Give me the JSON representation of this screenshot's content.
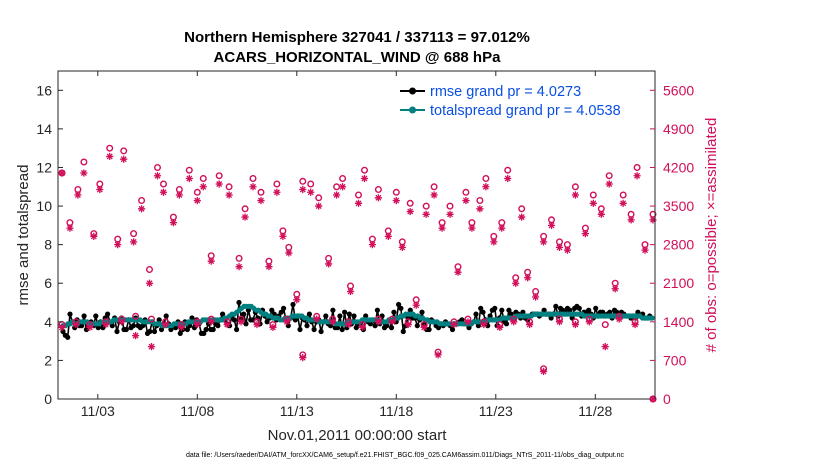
{
  "chart_data": {
    "type": "line",
    "title_line1": "Northern Hemisphere 327041 / 337113 = 97.012%",
    "title_line2": "ACARS_HORIZONTAL_WIND @ 688 hPa",
    "xlabel": "Nov.01,2011 00:00:00 start",
    "ylabel_left": "rmse and totalspread",
    "ylabel_right": "# of obs: o=possible; ×=assimilated",
    "xlim": [
      1.0,
      31.0
    ],
    "ylim_left": [
      0,
      17
    ],
    "ylim_right": [
      0,
      5950
    ],
    "x_ticks": [
      3,
      8,
      13,
      18,
      23,
      28
    ],
    "x_tick_labels": [
      "11/03",
      "11/08",
      "11/13",
      "11/18",
      "11/23",
      "11/28"
    ],
    "y_ticks_left": [
      0,
      2,
      4,
      6,
      8,
      10,
      12,
      14,
      16
    ],
    "y_ticks_right": [
      0,
      700,
      1400,
      2100,
      2800,
      3500,
      4200,
      4900,
      5600
    ],
    "colors": {
      "rmse": "#000000",
      "totalspread": "#008080",
      "obs": "#d10f5a",
      "legend_text": "#0a4fe0"
    },
    "series": [
      {
        "name": "rmse grand pr = 4.0273",
        "axis": "left",
        "values": [
          3.5,
          3.3,
          3.2,
          4.4,
          4.0,
          3.7,
          4.1,
          3.8,
          3.8,
          4.3,
          3.6,
          3.9,
          4.0,
          3.8,
          4.3,
          3.7,
          4.0,
          3.7,
          4.2,
          4.4,
          4.0,
          3.8,
          4.2,
          3.5,
          4.0,
          4.2,
          3.6,
          3.6,
          4.1,
          3.7,
          3.8,
          4.2,
          3.8,
          3.7,
          3.8,
          4.1,
          3.4,
          3.5,
          4.0,
          3.5,
          3.8,
          4.1,
          3.6,
          3.9,
          4.3,
          3.9,
          3.6,
          3.8,
          3.7,
          4.0,
          3.4,
          3.6,
          4.0,
          3.6,
          3.8,
          4.2,
          3.7,
          4.1,
          3.9,
          3.4,
          3.4,
          3.6,
          3.9,
          3.6,
          3.6,
          3.9,
          3.8,
          4.1,
          4.4,
          4.1,
          3.9,
          3.8,
          4.3,
          4.1,
          3.6,
          5.0,
          4.2,
          4.4,
          3.9,
          4.6,
          4.1,
          4.1,
          4.5,
          4.2,
          3.9,
          4.6,
          4.3,
          4.0,
          4.2,
          4.6,
          4.4,
          4.1,
          4.3,
          4.5,
          4.7,
          4.1,
          3.8,
          4.2,
          4.9,
          4.1,
          4.3,
          3.6,
          4.2,
          4.1,
          3.8,
          4.4,
          4.0,
          3.6,
          4.0,
          4.1,
          3.5,
          4.0,
          4.3,
          3.9,
          3.8,
          4.6,
          3.7,
          3.7,
          4.3,
          3.6,
          4.5,
          3.7,
          4.4,
          3.9,
          4.3,
          3.7,
          3.9,
          4.0,
          3.6,
          4.3,
          4.0,
          3.9,
          4.1,
          3.8,
          4.6,
          3.9,
          4.3,
          3.7,
          3.8,
          4.1,
          3.7,
          4.5,
          4.0,
          4.9,
          4.7,
          3.5,
          3.8,
          4.2,
          4.6,
          4.2,
          4.2,
          3.8,
          4.1,
          4.5,
          3.9,
          3.6,
          3.6,
          4.1,
          4.0,
          3.8,
          3.7,
          3.9,
          3.8,
          4.0,
          3.9,
          3.8,
          3.6,
          3.9,
          3.9,
          4.0,
          4.1,
          3.9,
          3.9,
          3.7,
          3.9,
          4.0,
          4.4,
          3.8,
          4.7,
          4.5,
          4.1,
          3.8,
          4.3,
          4.6,
          4.7,
          3.8,
          4.2,
          4.6,
          4.0,
          3.9,
          4.6,
          4.4,
          4.1,
          4.5,
          4.4,
          4.2,
          4.5,
          4.2,
          4.1,
          4.3,
          4.4,
          4.4,
          4.4,
          4.3,
          4.4,
          4.6,
          4.4,
          4.4,
          4.2,
          4.4,
          4.8,
          4.3,
          4.7,
          4.6,
          4.5,
          4.7,
          4.6,
          4.2,
          4.7,
          4.8,
          4.7,
          4.3,
          4.5,
          4.5,
          4.6,
          4.4,
          4.2,
          4.7,
          4.3,
          4.5,
          4.5,
          4.3,
          4.4,
          4.5,
          4.2,
          4.6,
          4.5,
          4.3,
          4.5,
          4.4,
          4.3,
          4.3,
          4.2,
          4.3,
          4.2,
          4.5,
          4.3,
          4.4,
          4.2,
          4.2,
          4.3,
          4.2
        ]
      },
      {
        "name": "totalspread grand pr = 4.0538",
        "axis": "left",
        "values": [
          3.8,
          3.8,
          3.9,
          3.9,
          4.0,
          3.9,
          3.9,
          4.0,
          4.0,
          4.0,
          4.0,
          3.9,
          3.9,
          3.9,
          3.9,
          3.9,
          4.0,
          4.0,
          4.0,
          4.0,
          4.0,
          4.1,
          4.1,
          4.1,
          4.1,
          4.1,
          4.1,
          4.1,
          4.1,
          4.1,
          4.1,
          4.1,
          4.1,
          4.0,
          4.0,
          4.0,
          4.0,
          4.0,
          3.9,
          3.9,
          3.9,
          3.8,
          3.8,
          3.8,
          3.8,
          3.8,
          3.9,
          3.9,
          3.9,
          3.9,
          3.9,
          3.9,
          4.0,
          4.0,
          4.0,
          4.0,
          4.0,
          4.0,
          4.1,
          4.1,
          4.1,
          4.1,
          4.1,
          4.1,
          4.1,
          4.1,
          4.1,
          4.2,
          4.2,
          4.3,
          4.4,
          4.4,
          4.5,
          4.6,
          4.7,
          4.8,
          4.8,
          4.8,
          4.8,
          4.7,
          4.6,
          4.6,
          4.5,
          4.4,
          4.4,
          4.3,
          4.3,
          4.2,
          4.2,
          4.2,
          4.1,
          4.1,
          4.2,
          4.2,
          4.2,
          4.3,
          4.3,
          4.3,
          4.3,
          4.3,
          4.2,
          4.2,
          4.1,
          4.1,
          4.1,
          4.1,
          4.0,
          4.0,
          4.0,
          4.0,
          4.0,
          4.0,
          4.0,
          3.9,
          3.9,
          3.9,
          3.9,
          3.9,
          4.0,
          4.0,
          4.0,
          4.0,
          4.0,
          4.0,
          4.1,
          4.1,
          4.1,
          4.1,
          4.1,
          4.1,
          4.1,
          4.0,
          4.0,
          4.0,
          4.0,
          4.1,
          4.1,
          4.1,
          4.2,
          4.2,
          4.3,
          4.3,
          4.4,
          4.4,
          4.4,
          4.4,
          4.3,
          4.3,
          4.2,
          4.2,
          4.1,
          4.1,
          4.0,
          4.0,
          4.0,
          4.0,
          3.9,
          3.9,
          3.9,
          3.9,
          3.9,
          3.9,
          3.9,
          3.9,
          3.9,
          3.9,
          3.9,
          3.9,
          3.9,
          3.9,
          4.0,
          4.0,
          4.0,
          4.0,
          4.0,
          4.0,
          4.1,
          4.1,
          4.1,
          4.1,
          4.1,
          4.1,
          4.2,
          4.2,
          4.2,
          4.2,
          4.2,
          4.2,
          4.3,
          4.3,
          4.3,
          4.3,
          4.3,
          4.3,
          4.3,
          4.4,
          4.4,
          4.4,
          4.4,
          4.4,
          4.4,
          4.4,
          4.4,
          4.4,
          4.4,
          4.4,
          4.4,
          4.4,
          4.4,
          4.4,
          4.4,
          4.4,
          4.4,
          4.4,
          4.4,
          4.4,
          4.3,
          4.3,
          4.3,
          4.3,
          4.3,
          4.3,
          4.3,
          4.3,
          4.3,
          4.3,
          4.3,
          4.3,
          4.3,
          4.3,
          4.3,
          4.3,
          4.3,
          4.3,
          4.3,
          4.3,
          4.3,
          4.3,
          4.3,
          4.3,
          4.2,
          4.2,
          4.2,
          4.2,
          4.2
        ]
      }
    ],
    "obs_series": {
      "axis": "right",
      "x": [
        1.2,
        1.6,
        2.0,
        2.3,
        2.8,
        3.1,
        3.6,
        4.0,
        4.3,
        4.8,
        5.2,
        5.6,
        6.0,
        6.3,
        6.8,
        7.1,
        7.6,
        8.0,
        8.3,
        8.7,
        9.1,
        9.6,
        10.1,
        10.4,
        10.8,
        11.2,
        11.6,
        12.0,
        12.3,
        12.6,
        13.0,
        13.3,
        13.7,
        14.1,
        14.6,
        15.0,
        15.3,
        15.7,
        16.1,
        16.4,
        16.8,
        17.1,
        17.6,
        18.0,
        18.3,
        18.7,
        19.0,
        19.5,
        19.9,
        20.3,
        20.7,
        21.1,
        21.5,
        21.8,
        22.2,
        22.5,
        22.9,
        23.3,
        23.6,
        24.0,
        24.3,
        24.6,
        25.0,
        25.4,
        25.8,
        26.2,
        26.6,
        27.0,
        27.5,
        27.9,
        28.3,
        28.7,
        29.0,
        29.4,
        29.8,
        30.1,
        30.5,
        30.9
      ],
      "possible": [
        4100,
        3200,
        3800,
        4300,
        3000,
        3900,
        4550,
        2900,
        4500,
        3000,
        3600,
        2350,
        4200,
        3900,
        3300,
        3800,
        4150,
        3750,
        4000,
        2600,
        4050,
        3850,
        2550,
        3450,
        4000,
        3750,
        2500,
        3900,
        3050,
        2750,
        1900,
        3950,
        3900,
        3650,
        2550,
        3850,
        4000,
        2050,
        3700,
        4150,
        2900,
        3800,
        3050,
        3750,
        2850,
        3550,
        1800,
        3500,
        3850,
        3200,
        3500,
        2400,
        3750,
        3200,
        3600,
        4000,
        2950,
        3200,
        4150,
        2200,
        3450,
        2300,
        1950,
        2950,
        3250,
        2850,
        2800,
        3850,
        3100,
        3700,
        3450,
        4050,
        2100,
        3700,
        3350,
        4200,
        2800,
        3350
      ],
      "assimilated": [
        4100,
        3100,
        3700,
        4100,
        2950,
        3800,
        4400,
        2800,
        4350,
        2850,
        3450,
        2100,
        4050,
        3750,
        3200,
        3700,
        4000,
        3600,
        3850,
        2500,
        3900,
        3700,
        2400,
        3300,
        3850,
        3600,
        2400,
        3750,
        2950,
        2650,
        1800,
        3800,
        3750,
        3500,
        2450,
        3700,
        3850,
        1950,
        3550,
        4000,
        2800,
        3650,
        2950,
        3600,
        2750,
        3400,
        1700,
        3350,
        3700,
        3100,
        3350,
        2300,
        3600,
        3100,
        3450,
        3850,
        2850,
        3100,
        4000,
        2100,
        3300,
        2200,
        1850,
        2850,
        3150,
        2750,
        2700,
        3700,
        3000,
        3550,
        3350,
        3900,
        2000,
        3550,
        3250,
        4050,
        2700,
        3250
      ],
      "possible_low": [
        1.2,
        1.9,
        2.6,
        3.4,
        4.2,
        4.9,
        5.7,
        6.4,
        7.2,
        8.0,
        8.7,
        9.5,
        10.2,
        11.0,
        11.8,
        12.5,
        13.3,
        14.0,
        14.8,
        15.6,
        16.3,
        17.1,
        17.8,
        18.6,
        19.4,
        20.1,
        20.9,
        21.6,
        22.4,
        23.2,
        23.9,
        24.7,
        25.4,
        26.2,
        27.0,
        27.7,
        28.5,
        29.2,
        30.0,
        30.9
      ],
      "possible_low_values": [
        1350,
        1400,
        1350,
        1400,
        1450,
        1500,
        1450,
        1400,
        1350,
        1400,
        1450,
        1400,
        1450,
        1400,
        1350,
        1450,
        800,
        1500,
        1450,
        1400,
        1350,
        1450,
        1450,
        1400,
        1350,
        850,
        1400,
        1450,
        1400,
        1350,
        1450,
        1400,
        550,
        1450,
        1400,
        1450,
        1350,
        1500,
        1400,
        0
      ],
      "assimilated_low": [
        1.2,
        1.9,
        2.6,
        3.4,
        4.2,
        4.9,
        5.7,
        6.4,
        7.2,
        8.0,
        8.7,
        9.5,
        10.2,
        11.0,
        11.8,
        12.5,
        13.3,
        14.0,
        14.8,
        15.6,
        16.3,
        17.1,
        17.8,
        18.6,
        19.4,
        20.1,
        20.9,
        21.6,
        22.4,
        23.2,
        23.9,
        24.7,
        25.4,
        26.2,
        27.0,
        27.7,
        28.5,
        29.2,
        30.0,
        30.9
      ],
      "assimilated_low_values": [
        1300,
        1350,
        1300,
        1350,
        1400,
        1150,
        950,
        1350,
        1300,
        1350,
        1400,
        1350,
        1400,
        1350,
        1300,
        1400,
        750,
        1450,
        1400,
        1350,
        1300,
        1400,
        1400,
        1350,
        1300,
        800,
        1350,
        1400,
        1350,
        1300,
        1400,
        1350,
        500,
        1400,
        1350,
        1400,
        950,
        1450,
        1350,
        0
      ]
    },
    "legend_position": "top-right",
    "grid": false,
    "footer": "data file: /Users/raeder/DAI/ATM_forcXX/CAM6_setup/f.e21.FHIST_BGC.f09_025.CAM6assim.011/Diags_NTrS_2011-11/obs_diag_output.nc"
  }
}
